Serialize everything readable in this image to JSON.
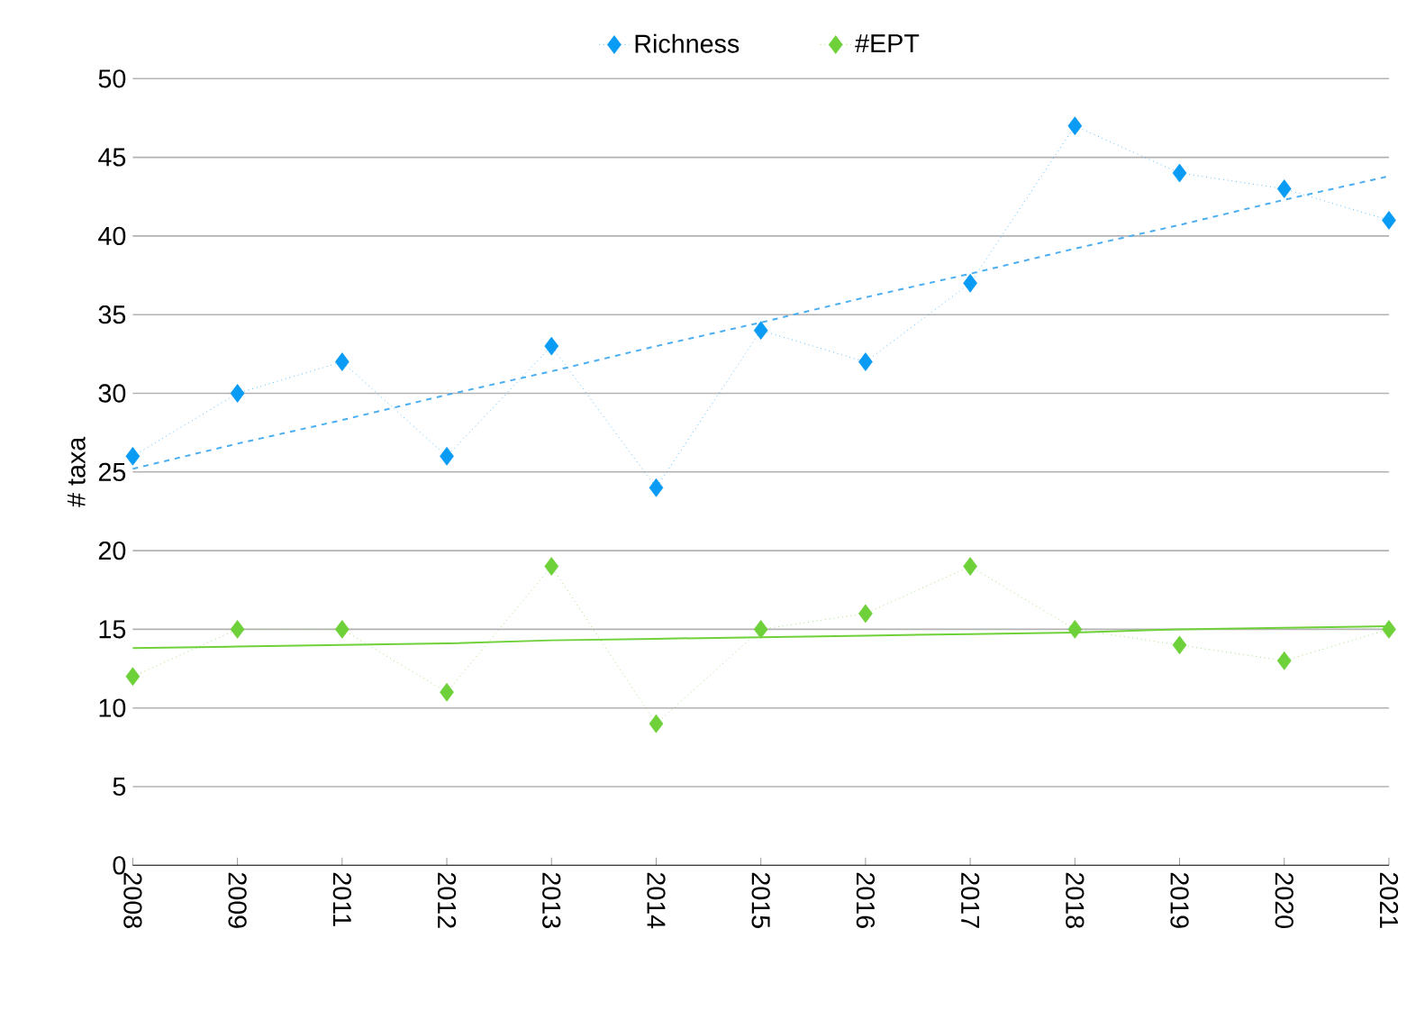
{
  "chart_data": {
    "type": "line",
    "ylabel": "# taxa",
    "categories": [
      "2008",
      "2009",
      "2011",
      "2012",
      "2013",
      "2014",
      "2015",
      "2016",
      "2017",
      "2018",
      "2019",
      "2020",
      "2021"
    ],
    "series": [
      {
        "name": "Richness",
        "color": "#0a9bf5",
        "marker": "diamond",
        "line_style": "dotted",
        "values": [
          26,
          30,
          32,
          26,
          33,
          24,
          34,
          32,
          37,
          47,
          44,
          43,
          41
        ]
      },
      {
        "name": "#EPT",
        "color": "#6fd13a",
        "marker": "diamond",
        "line_style": "dotted",
        "values": [
          12,
          15,
          15,
          11,
          19,
          9,
          15,
          16,
          19,
          15,
          14,
          13,
          15
        ]
      },
      {
        "type": "line",
        "color": "#4aaef0",
        "marker": "none",
        "line_style": "dashed",
        "values": [
          25.2,
          26.8,
          28.3,
          29.9,
          31.4,
          33.0,
          34.5,
          36.1,
          37.6,
          39.2,
          40.7,
          42.3,
          43.8
        ]
      },
      {
        "type": "line",
        "color": "#6fd13a",
        "marker": "none",
        "line_style": "solid",
        "values": [
          13.8,
          13.9,
          14.0,
          14.1,
          14.3,
          14.4,
          14.5,
          14.6,
          14.7,
          14.8,
          15.0,
          15.1,
          15.2
        ]
      }
    ],
    "ylim": [
      0,
      50
    ],
    "yticks": [
      0,
      5,
      10,
      15,
      20,
      25,
      30,
      35,
      40,
      45,
      50
    ],
    "grid": "y",
    "legend": "top"
  }
}
